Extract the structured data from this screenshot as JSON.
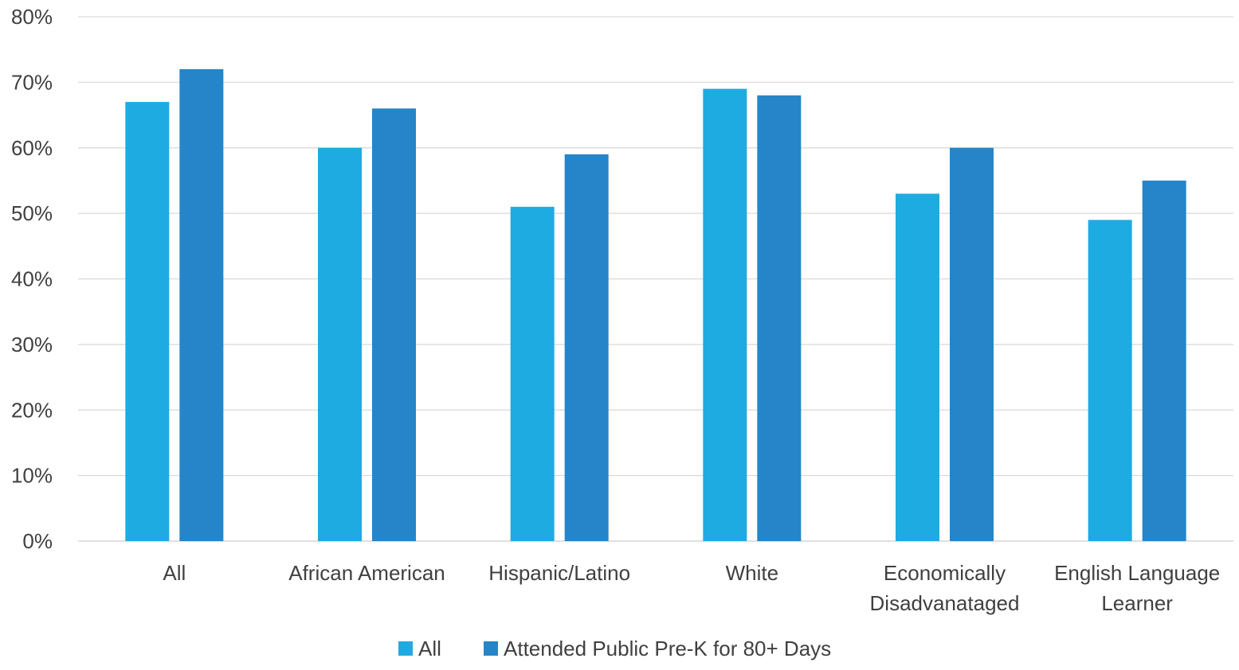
{
  "chart_data": {
    "type": "bar",
    "title": "",
    "xlabel": "",
    "ylabel": "",
    "categories": [
      "All",
      "African American",
      "Hispanic/Latino",
      "White",
      "Economically Disadvanataged",
      "English Language Learner"
    ],
    "category_lines": [
      [
        "All"
      ],
      [
        "African American"
      ],
      [
        "Hispanic/Latino"
      ],
      [
        "White"
      ],
      [
        "Economically",
        "Disadvanataged"
      ],
      [
        "English Language",
        "Learner"
      ]
    ],
    "series": [
      {
        "name": "All",
        "color": "#1eabe1",
        "values": [
          67,
          60,
          51,
          69,
          53,
          49
        ]
      },
      {
        "name": "Attended Public Pre-K for 80+ Days",
        "color": "#2585c8",
        "values": [
          72,
          66,
          59,
          68,
          60,
          55
        ]
      }
    ],
    "ylim": [
      0,
      80
    ],
    "yticks": [
      0,
      10,
      20,
      30,
      40,
      50,
      60,
      70,
      80
    ],
    "ytick_format": "percent",
    "grid": true,
    "legend_position": "bottom"
  }
}
